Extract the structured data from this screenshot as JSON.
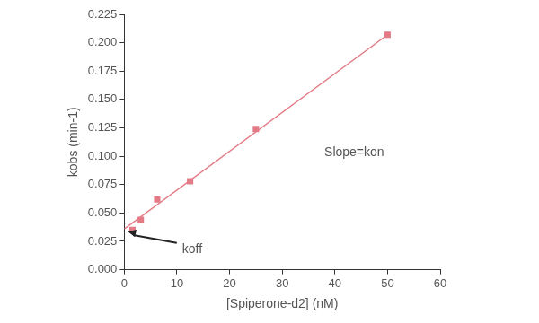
{
  "chart_data": {
    "type": "scatter",
    "x_label": "[Spiperone-d2] (nM)",
    "y_label": "kobs (min-1)",
    "series": [
      {
        "type": "scatter",
        "marker": "square",
        "color": "#e37b86",
        "x": [
          1.56,
          3.13,
          6.25,
          12.5,
          25,
          50
        ],
        "values": [
          0.035,
          0.044,
          0.062,
          0.078,
          0.124,
          0.207
        ]
      },
      {
        "type": "line",
        "line_style": "solid",
        "color": "#e37b86",
        "x": [
          0,
          50
        ],
        "values": [
          0.036,
          0.207
        ]
      }
    ],
    "annotations": [
      {
        "text": "Slope=kon",
        "x": 38,
        "y": 0.103
      },
      {
        "text": "koff",
        "x": 11,
        "y": 0.018
      }
    ],
    "xlim": [
      0,
      60
    ],
    "xticks": [
      0,
      10,
      20,
      30,
      40,
      50,
      60
    ],
    "ylim": [
      0,
      0.225
    ],
    "yticks": [
      {
        "value": 0,
        "label": "0.000"
      },
      {
        "value": 0.025,
        "label": "0.025"
      },
      {
        "value": 0.05,
        "label": "0.050"
      },
      {
        "value": 0.075,
        "label": "0.075"
      },
      {
        "value": 0.1,
        "label": "0.100"
      },
      {
        "value": 0.125,
        "label": "0.125"
      },
      {
        "value": 0.15,
        "label": "0.150"
      },
      {
        "value": 0.175,
        "label": "0.175"
      },
      {
        "value": 0.2,
        "label": "0.200"
      },
      {
        "value": 0.225,
        "label": "0.225"
      }
    ],
    "grid": false
  }
}
